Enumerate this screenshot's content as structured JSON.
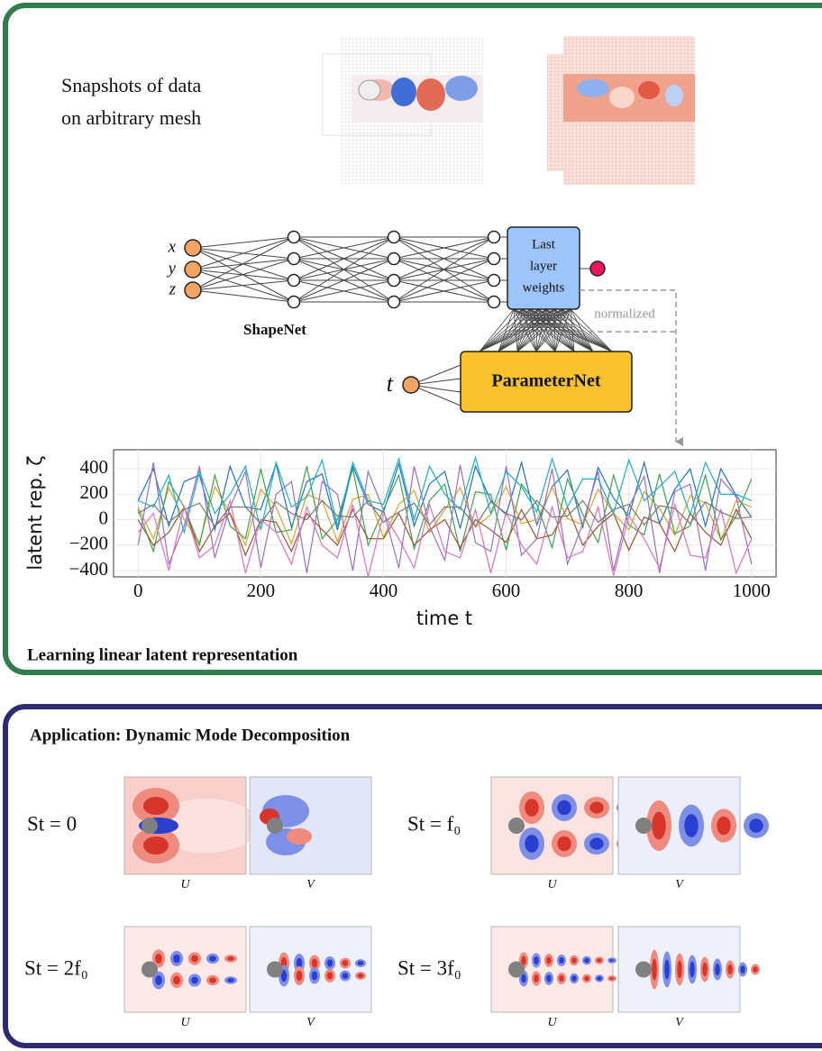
{
  "panel1": {
    "snapshot_text": [
      "Snapshots of data",
      "on arbitrary mesh"
    ],
    "inputs": [
      "x",
      "y",
      "z"
    ],
    "shapenet": "ShapeNet",
    "last_layer": [
      "Last",
      "layer",
      "weights"
    ],
    "parameternet": "ParameterNet",
    "t": "t",
    "normalized": "normalized",
    "caption": "Learning linear latent representation"
  },
  "chart_data": {
    "type": "line",
    "xlabel": "time t",
    "ylabel": "latent rep. ζ",
    "x": [
      0,
      25,
      50,
      75,
      100,
      125,
      150,
      175,
      200,
      225,
      250,
      275,
      300,
      325,
      350,
      375,
      400,
      425,
      450,
      475,
      500,
      525,
      550,
      575,
      600,
      625,
      650,
      675,
      700,
      725,
      750,
      775,
      800,
      825,
      850,
      875,
      900,
      925,
      950,
      975,
      1000
    ],
    "xlim": [
      -40,
      1040
    ],
    "xticks": [
      0,
      200,
      400,
      600,
      800,
      1000
    ],
    "ylim": [
      -450,
      550
    ],
    "yticks": [
      {
        "value": -400,
        "label": "−400"
      },
      {
        "value": -200,
        "label": "−200"
      },
      0,
      200,
      400
    ],
    "grid": true,
    "series": [
      {
        "color": "#1f6fd1",
        "values": [
          150,
          400,
          -50,
          300,
          350,
          -80,
          420,
          100,
          80,
          440,
          -60,
          300,
          360,
          -80,
          420,
          120,
          60,
          440,
          -50,
          280,
          380,
          -70,
          420,
          150,
          40,
          450,
          -40,
          260,
          390,
          -60,
          410,
          170,
          30,
          450,
          -30,
          240,
          400,
          -50,
          400,
          190,
          20
        ]
      },
      {
        "color": "#e5a028",
        "values": [
          100,
          -150,
          250,
          0,
          -180,
          260,
          50,
          -200,
          240,
          100,
          -190,
          200,
          150,
          -170,
          160,
          200,
          -140,
          120,
          230,
          -100,
          80,
          250,
          -60,
          40,
          260,
          -30,
          0,
          250,
          10,
          -40,
          240,
          50,
          -80,
          220,
          90,
          -120,
          190,
          130,
          -160,
          150,
          100
        ]
      },
      {
        "color": "#3da44d",
        "values": [
          80,
          -250,
          300,
          100,
          -200,
          350,
          -50,
          -150,
          400,
          -100,
          -80,
          420,
          -150,
          0,
          400,
          -200,
          80,
          350,
          -230,
          150,
          280,
          -250,
          220,
          200,
          -240,
          280,
          120,
          -220,
          320,
          40,
          -180,
          350,
          -40,
          -120,
          360,
          -110,
          -50,
          350,
          -160,
          30,
          320
        ]
      },
      {
        "color": "#a0522d",
        "values": [
          0,
          -200,
          -100,
          100,
          -250,
          -50,
          50,
          -280,
          0,
          -20,
          -250,
          50,
          -80,
          -200,
          80,
          -150,
          -150,
          50,
          -200,
          -80,
          0,
          -220,
          0,
          -80,
          -180,
          80,
          -150,
          -120,
          100,
          -200,
          -50,
          50,
          -240,
          20,
          -30,
          -250,
          50,
          -100,
          -200,
          80,
          -150
        ]
      },
      {
        "color": "#9b6fc7",
        "values": [
          -200,
          450,
          -350,
          -50,
          420,
          -300,
          100,
          380,
          -380,
          200,
          300,
          -420,
          300,
          200,
          -400,
          380,
          80,
          -380,
          420,
          -50,
          -320,
          430,
          -180,
          -250,
          420,
          -280,
          -150,
          400,
          -350,
          -30,
          380,
          -400,
          100,
          340,
          -420,
          220,
          280,
          -400,
          320,
          180,
          -350
        ]
      },
      {
        "color": "#17b3c4",
        "values": [
          150,
          100,
          350,
          -100,
          380,
          50,
          200,
          420,
          -80,
          450,
          100,
          180,
          470,
          -50,
          450,
          150,
          120,
          480,
          0,
          420,
          200,
          80,
          490,
          50,
          380,
          260,
          60,
          480,
          100,
          320,
          320,
          50,
          470,
          150,
          260,
          380,
          40,
          450,
          200,
          200,
          150
        ]
      },
      {
        "color": "#e070c0",
        "values": [
          -100,
          50,
          -400,
          100,
          -300,
          -200,
          150,
          -420,
          0,
          -100,
          -350,
          100,
          -200,
          -300,
          120,
          -450,
          50,
          -150,
          -380,
          120,
          -250,
          -300,
          80,
          -420,
          60,
          -200,
          -350,
          100,
          -300,
          -250,
          100,
          -440,
          30,
          -150,
          -380,
          120,
          -280,
          -300,
          80,
          -420,
          -150
        ]
      },
      {
        "color": "#777777",
        "values": [
          50,
          120,
          -20,
          80,
          130,
          -50,
          100,
          100,
          -30,
          140,
          50,
          0,
          150,
          30,
          20,
          150,
          -20,
          60,
          130,
          -40,
          100,
          100,
          -50,
          140,
          50,
          0,
          150,
          20,
          30,
          150,
          -20,
          80,
          120,
          -40,
          110,
          90,
          -30,
          140,
          60,
          10,
          20
        ]
      }
    ]
  },
  "panel2": {
    "title": "Application: Dynamic Mode Decomposition",
    "modes": [
      {
        "label": "St = 0",
        "components": [
          "U",
          "V"
        ]
      },
      {
        "label": "St = f₀",
        "components": [
          "U",
          "V"
        ]
      },
      {
        "label": "St = 2f₀",
        "components": [
          "U",
          "V"
        ]
      },
      {
        "label": "St = 3f₀",
        "components": [
          "U",
          "V"
        ]
      }
    ]
  }
}
